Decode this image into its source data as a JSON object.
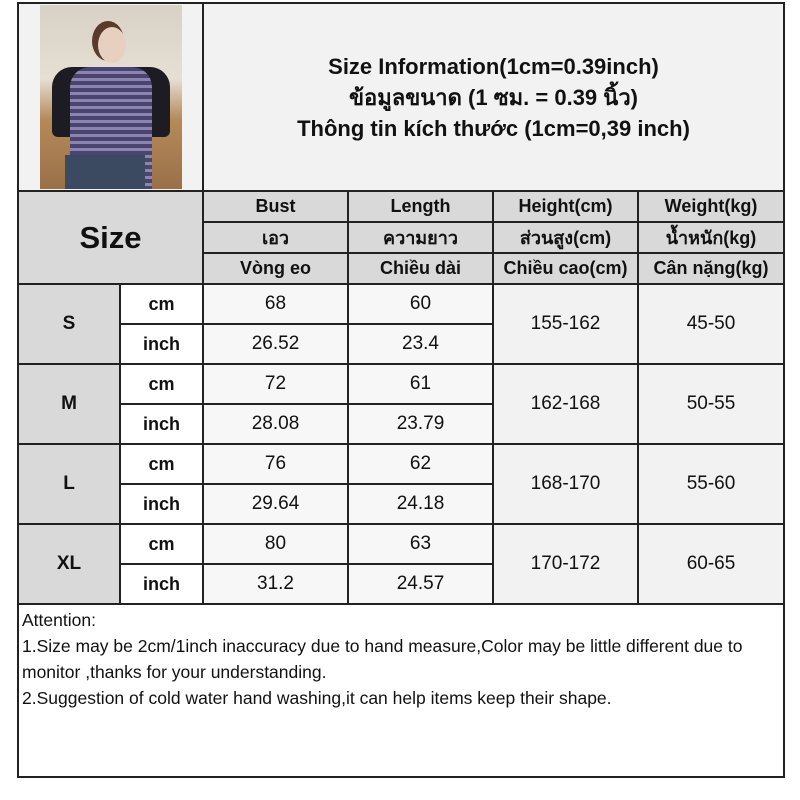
{
  "title_lines": [
    "Size Information(1cm=0.39inch)",
    "ข้อมูลขนาด (1 ซม. = 0.39 นิ้ว)",
    "Thông tin kích thước (1cm=0,39 inch)"
  ],
  "size_heading": "Size",
  "columns": [
    {
      "en": "Bust",
      "th": "เอว",
      "vi": "Vòng eo"
    },
    {
      "en": "Length",
      "th": "ความยาว",
      "vi": "Chiều dài"
    },
    {
      "en": "Height(cm)",
      "th": "ส่วนสูง(cm)",
      "vi": "Chiều cao(cm)"
    },
    {
      "en": "Weight(kg)",
      "th": "น้ำหนัก(kg)",
      "vi": "Cân nặng(kg)"
    }
  ],
  "units": {
    "cm": "cm",
    "inch": "inch"
  },
  "rows": [
    {
      "size": "S",
      "bust_cm": "68",
      "length_cm": "60",
      "bust_inch": "26.52",
      "length_inch": "23.4",
      "height": "155-162",
      "weight": "45-50"
    },
    {
      "size": "M",
      "bust_cm": "72",
      "length_cm": "61",
      "bust_inch": "28.08",
      "length_inch": "23.79",
      "height": "162-168",
      "weight": "50-55"
    },
    {
      "size": "L",
      "bust_cm": "76",
      "length_cm": "62",
      "bust_inch": "29.64",
      "length_inch": "24.18",
      "height": "168-170",
      "weight": "55-60"
    },
    {
      "size": "XL",
      "bust_cm": "80",
      "length_cm": "63",
      "bust_inch": "31.2",
      "length_inch": "24.57",
      "height": "170-172",
      "weight": "60-65"
    }
  ],
  "notes": [
    "Attention:",
    "1.Size may be 2cm/1inch inaccuracy due to hand measure,Color may be little different due to monitor ,thanks for your understanding.",
    "2.Suggestion of cold water hand washing,it can help items keep their shape."
  ]
}
